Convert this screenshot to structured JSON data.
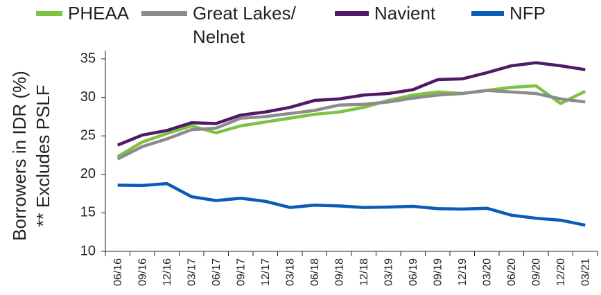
{
  "chart_data": {
    "type": "line",
    "y_label": [
      "Borrowers in IDR (%)",
      "** Excludes PSLF"
    ],
    "categories": [
      "06/16",
      "09/16",
      "12/16",
      "03/17",
      "06/17",
      "09/17",
      "12/17",
      "03/18",
      "06/18",
      "09/18",
      "12/18",
      "03/19",
      "06/19",
      "09/19",
      "12/19",
      "03/20",
      "06/20",
      "09/20",
      "12/20",
      "03/21"
    ],
    "series": [
      {
        "name": "PHEAA",
        "color": "#7dc242",
        "values": [
          22.3,
          24.2,
          25.3,
          26.3,
          25.4,
          26.3,
          26.8,
          27.3,
          27.8,
          28.1,
          28.7,
          29.6,
          30.3,
          30.7,
          30.5,
          30.9,
          31.3,
          31.5,
          29.2,
          30.8
        ]
      },
      {
        "name": "Great Lakes/ Nelnet",
        "color": "#8c8c8c",
        "values": [
          22.0,
          23.6,
          24.6,
          25.8,
          26.0,
          27.3,
          27.5,
          27.9,
          28.3,
          29.0,
          29.1,
          29.4,
          29.9,
          30.3,
          30.5,
          30.9,
          30.7,
          30.5,
          29.8,
          29.4
        ]
      },
      {
        "name": "Navient",
        "color": "#4f1a66",
        "values": [
          23.8,
          25.1,
          25.7,
          26.7,
          26.6,
          27.7,
          28.1,
          28.7,
          29.6,
          29.8,
          30.3,
          30.5,
          31.0,
          32.3,
          32.4,
          33.2,
          34.1,
          34.5,
          34.1,
          33.6
        ]
      },
      {
        "name": "NFP",
        "color": "#0a5cb8",
        "values": [
          18.6,
          18.55,
          18.8,
          17.1,
          16.6,
          16.9,
          16.5,
          15.7,
          16.0,
          15.9,
          15.7,
          15.75,
          15.85,
          15.55,
          15.5,
          15.6,
          14.7,
          14.3,
          14.05,
          13.4
        ]
      }
    ],
    "ylim": [
      10,
      35
    ],
    "yticks": [
      10,
      15,
      20,
      25,
      30,
      35
    ],
    "grid": false
  }
}
